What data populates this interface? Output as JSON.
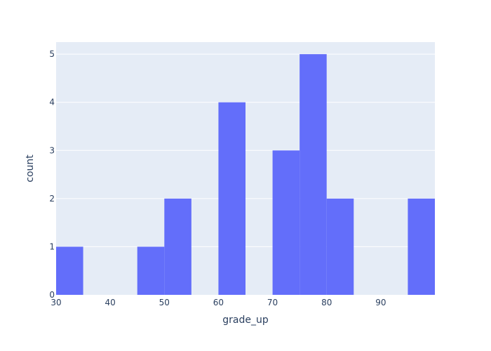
{
  "chart_data": {
    "type": "bar",
    "subtype": "histogram",
    "title": "",
    "xlabel": "grade_up",
    "ylabel": "count",
    "bin_width": 5,
    "bins": [
      {
        "start": 30,
        "end": 35,
        "count": 1
      },
      {
        "start": 35,
        "end": 40,
        "count": 0
      },
      {
        "start": 40,
        "end": 45,
        "count": 0
      },
      {
        "start": 45,
        "end": 50,
        "count": 1
      },
      {
        "start": 50,
        "end": 55,
        "count": 2
      },
      {
        "start": 55,
        "end": 60,
        "count": 0
      },
      {
        "start": 60,
        "end": 65,
        "count": 4
      },
      {
        "start": 65,
        "end": 70,
        "count": 0
      },
      {
        "start": 70,
        "end": 75,
        "count": 3
      },
      {
        "start": 75,
        "end": 80,
        "count": 5
      },
      {
        "start": 80,
        "end": 85,
        "count": 2
      },
      {
        "start": 85,
        "end": 90,
        "count": 0
      },
      {
        "start": 90,
        "end": 95,
        "count": 0
      },
      {
        "start": 95,
        "end": 100,
        "count": 2
      }
    ],
    "xlim": [
      30,
      100
    ],
    "ylim": [
      0,
      5.25
    ],
    "x_ticks": [
      "30",
      "40",
      "50",
      "60",
      "70",
      "80",
      "90"
    ],
    "x_tick_values": [
      30,
      40,
      50,
      60,
      70,
      80,
      90
    ],
    "y_ticks": [
      "0",
      "1",
      "2",
      "3",
      "4",
      "5"
    ],
    "y_tick_values": [
      0,
      1,
      2,
      3,
      4,
      5
    ],
    "grid": true,
    "legend": "none",
    "colors": {
      "bar": "#636efa",
      "plot_background": "#e5ecf6",
      "gridline": "#ffffff",
      "text": "#2a3f5f"
    }
  }
}
